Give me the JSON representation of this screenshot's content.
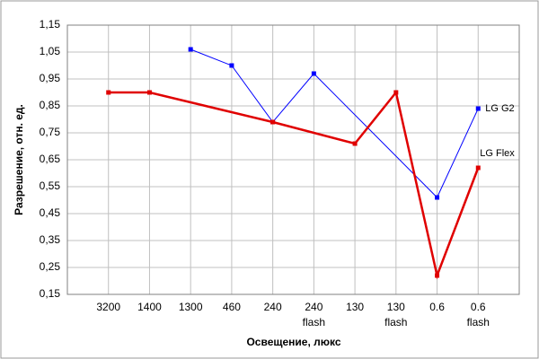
{
  "chart_data": {
    "type": "line",
    "x_label": "Освещение, люкс",
    "y_label": "Разрешение, отн. ед.",
    "categories": [
      "3200",
      "1400",
      "1300",
      "460",
      "240",
      "240\nflash",
      "130",
      "130\nflash",
      "0.6",
      "0.6\nflash"
    ],
    "series": [
      {
        "name": "LG G2",
        "color": "#0000ff",
        "values": [
          null,
          null,
          1.06,
          1.0,
          0.79,
          0.97,
          null,
          null,
          0.51,
          0.84
        ]
      },
      {
        "name": "LG Flex",
        "color": "#e00000",
        "values": [
          0.9,
          0.9,
          null,
          null,
          0.79,
          null,
          0.71,
          0.9,
          0.22,
          0.62
        ]
      }
    ],
    "connect_gaps": true,
    "ylim": [
      0.15,
      1.15
    ],
    "yticks": [
      {
        "value": 0.15,
        "label": "0,15"
      },
      {
        "value": 0.25,
        "label": "0,25"
      },
      {
        "value": 0.35,
        "label": "0,35"
      },
      {
        "value": 0.45,
        "label": "0,45"
      },
      {
        "value": 0.55,
        "label": "0,55"
      },
      {
        "value": 0.65,
        "label": "0,65"
      },
      {
        "value": 0.75,
        "label": "0,75"
      },
      {
        "value": 0.85,
        "label": "0,85"
      },
      {
        "value": 0.95,
        "label": "0,95"
      },
      {
        "value": 1.05,
        "label": "1,05"
      },
      {
        "value": 1.15,
        "label": "1,15"
      }
    ],
    "grid": true
  }
}
